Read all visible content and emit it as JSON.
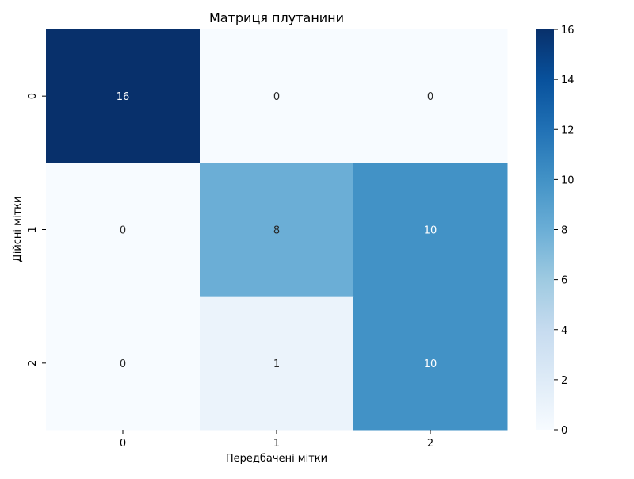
{
  "chart_data": {
    "type": "heatmap",
    "title": "Матриця плутанини",
    "xlabel": "Передбачені мітки",
    "ylabel": "Дійсні мітки",
    "x_categories": [
      "0",
      "1",
      "2"
    ],
    "y_categories": [
      "0",
      "1",
      "2"
    ],
    "values": [
      [
        16,
        0,
        0
      ],
      [
        0,
        8,
        10
      ],
      [
        0,
        1,
        10
      ]
    ],
    "colormap": "Blues",
    "color_range": [
      0,
      16
    ],
    "colorbar_ticks": [
      0,
      2,
      4,
      6,
      8,
      10,
      12,
      14,
      16
    ],
    "colors": {
      "low": "#f7fbff",
      "high": "#08306b",
      "text_dark": "#262626",
      "text_light": "#ffffff"
    }
  }
}
